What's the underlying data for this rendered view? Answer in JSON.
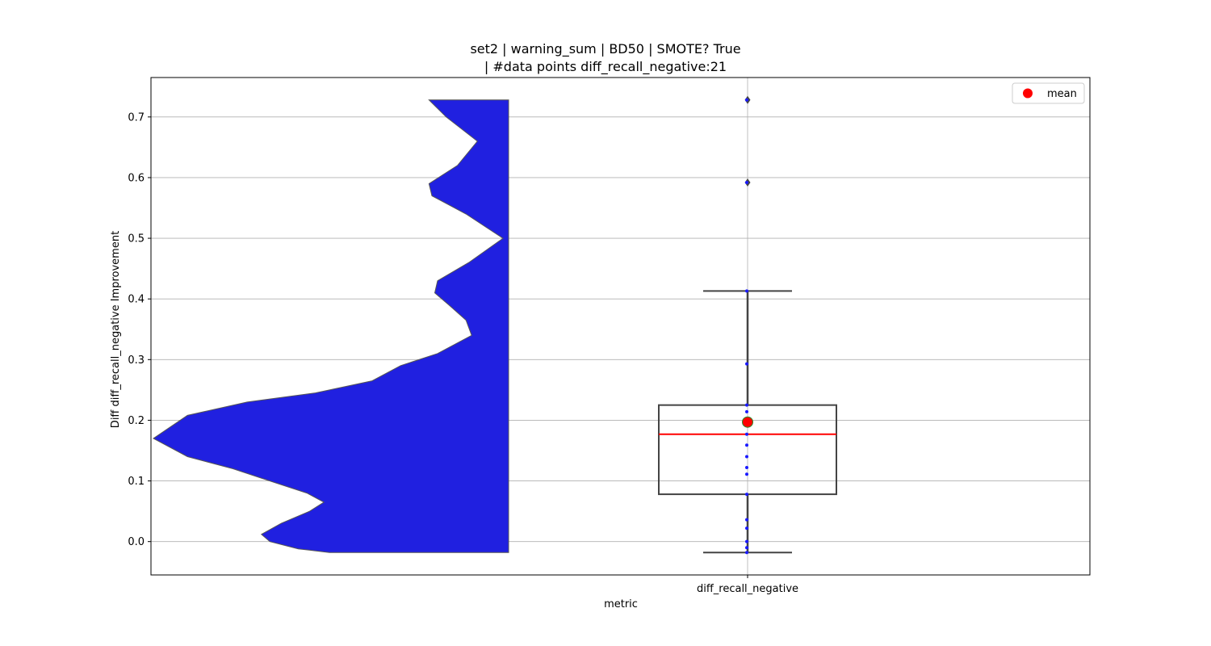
{
  "chart_data": {
    "type": "violin+box",
    "title_line1": "set2 | warning_sum | BD50 | SMOTE? True",
    "title_line2": "| #data points diff_recall_negative:21",
    "xlabel": "metric",
    "ylabel": "Diff diff_recall_negative Improvement",
    "categories": [
      "diff_recall_negative"
    ],
    "ylim": [
      -0.055,
      0.765
    ],
    "yticks": [
      0.0,
      0.1,
      0.2,
      0.3,
      0.4,
      0.5,
      0.6,
      0.7
    ],
    "ytick_labels": [
      "0.0",
      "0.1",
      "0.2",
      "0.3",
      "0.4",
      "0.5",
      "0.6",
      "0.7"
    ],
    "grid": true,
    "legend": {
      "placement": "top-right",
      "entries": [
        {
          "label": "mean",
          "color": "#ff0000",
          "marker": "circle"
        }
      ]
    },
    "box": {
      "q1": 0.078,
      "median": 0.177,
      "q3": 0.225,
      "whisker_low": -0.018,
      "whisker_high": 0.413,
      "mean": 0.197,
      "outliers": [
        0.592,
        0.728
      ],
      "median_color": "#ff0000",
      "box_edge_color": "#444444"
    },
    "points": [
      -0.018,
      -0.01,
      0.0,
      0.022,
      0.036,
      0.078,
      0.111,
      0.122,
      0.14,
      0.159,
      0.177,
      0.196,
      0.214,
      0.225,
      0.293,
      0.413,
      0.592,
      0.728
    ],
    "violin": {
      "color": "#2020e0",
      "density_profile": [
        {
          "y": -0.018,
          "w": 0.63
        },
        {
          "y": -0.012,
          "w": 0.74
        },
        {
          "y": 0.0,
          "w": 0.84
        },
        {
          "y": 0.012,
          "w": 0.87
        },
        {
          "y": 0.03,
          "w": 0.8
        },
        {
          "y": 0.05,
          "w": 0.7
        },
        {
          "y": 0.065,
          "w": 0.65
        },
        {
          "y": 0.08,
          "w": 0.71
        },
        {
          "y": 0.1,
          "w": 0.84
        },
        {
          "y": 0.12,
          "w": 0.97
        },
        {
          "y": 0.14,
          "w": 1.13
        },
        {
          "y": 0.17,
          "w": 1.25
        },
        {
          "y": 0.208,
          "w": 1.13
        },
        {
          "y": 0.23,
          "w": 0.92
        },
        {
          "y": 0.245,
          "w": 0.68
        },
        {
          "y": 0.265,
          "w": 0.48
        },
        {
          "y": 0.29,
          "w": 0.38
        },
        {
          "y": 0.31,
          "w": 0.25
        },
        {
          "y": 0.34,
          "w": 0.13
        },
        {
          "y": 0.365,
          "w": 0.15
        },
        {
          "y": 0.39,
          "w": 0.21
        },
        {
          "y": 0.41,
          "w": 0.26
        },
        {
          "y": 0.43,
          "w": 0.25
        },
        {
          "y": 0.46,
          "w": 0.14
        },
        {
          "y": 0.5,
          "w": 0.02
        },
        {
          "y": 0.54,
          "w": 0.15
        },
        {
          "y": 0.57,
          "w": 0.27
        },
        {
          "y": 0.59,
          "w": 0.28
        },
        {
          "y": 0.62,
          "w": 0.18
        },
        {
          "y": 0.66,
          "w": 0.11
        },
        {
          "y": 0.7,
          "w": 0.22
        },
        {
          "y": 0.728,
          "w": 0.28
        }
      ]
    }
  }
}
